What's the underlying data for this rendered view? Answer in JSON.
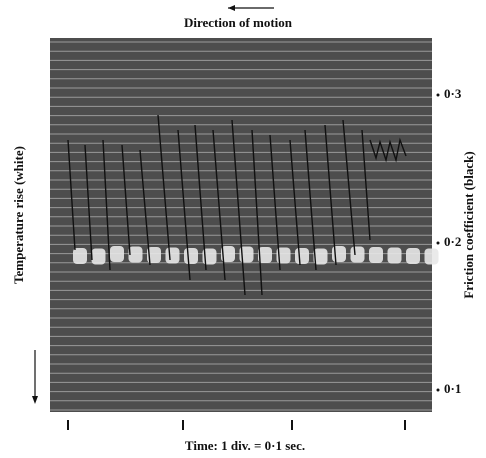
{
  "figure": {
    "title": "Direction of motion",
    "left_label": "Temperature rise (white)",
    "right_label": "Friction coefficient (black)",
    "scale_labels": [
      "0·3",
      "0·2",
      "0·1"
    ],
    "caption": "Time: 1 div. = 0·1 sec."
  }
}
